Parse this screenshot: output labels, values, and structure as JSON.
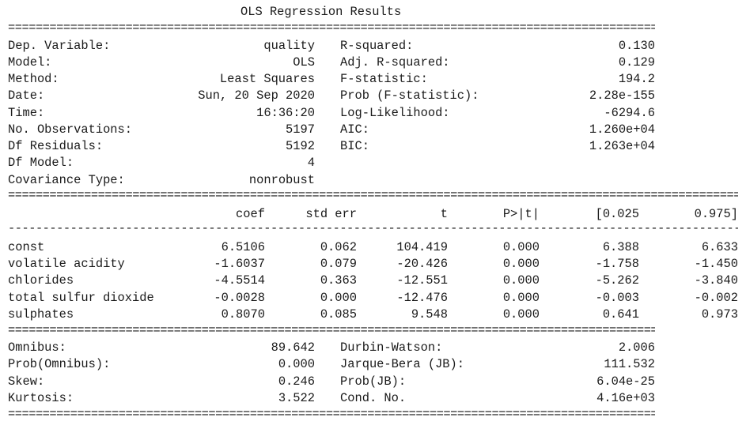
{
  "title": "OLS Regression Results",
  "separators": {
    "double": "==============================================================================================================================================",
    "single": "----------------------------------------------------------------------------------------------------------------------------------------------"
  },
  "summary": {
    "left": [
      {
        "label": "Dep. Variable:",
        "value": "quality"
      },
      {
        "label": "Model:",
        "value": "OLS"
      },
      {
        "label": "Method:",
        "value": "Least Squares"
      },
      {
        "label": "Date:",
        "value": "Sun, 20 Sep 2020"
      },
      {
        "label": "Time:",
        "value": "16:36:20"
      },
      {
        "label": "No. Observations:",
        "value": "5197"
      },
      {
        "label": "Df Residuals:",
        "value": "5192"
      },
      {
        "label": "Df Model:",
        "value": "4"
      },
      {
        "label": "Covariance Type:",
        "value": "nonrobust"
      }
    ],
    "right": [
      {
        "label": "R-squared:",
        "value": "0.130"
      },
      {
        "label": "Adj. R-squared:",
        "value": "0.129"
      },
      {
        "label": "F-statistic:",
        "value": "194.2"
      },
      {
        "label": "Prob (F-statistic):",
        "value": "2.28e-155"
      },
      {
        "label": "Log-Likelihood:",
        "value": "-6294.6"
      },
      {
        "label": "AIC:",
        "value": "1.260e+04"
      },
      {
        "label": "BIC:",
        "value": "1.263e+04"
      }
    ]
  },
  "coef_table": {
    "headers": [
      "coef",
      "std err",
      "t",
      "P>|t|",
      "[0.025",
      "0.975]"
    ],
    "rows": [
      {
        "name": "const",
        "cells": [
          "6.5106",
          "0.062",
          "104.419",
          "0.000",
          "6.388",
          "6.633"
        ]
      },
      {
        "name": "volatile acidity",
        "cells": [
          "-1.6037",
          "0.079",
          "-20.426",
          "0.000",
          "-1.758",
          "-1.450"
        ]
      },
      {
        "name": "chlorides",
        "cells": [
          "-4.5514",
          "0.363",
          "-12.551",
          "0.000",
          "-5.262",
          "-3.840"
        ]
      },
      {
        "name": "total sulfur dioxide",
        "cells": [
          "-0.0028",
          "0.000",
          "-12.476",
          "0.000",
          "-0.003",
          "-0.002"
        ]
      },
      {
        "name": "sulphates",
        "cells": [
          "0.8070",
          "0.085",
          "9.548",
          "0.000",
          "0.641",
          "0.973"
        ]
      }
    ]
  },
  "diagnostics": {
    "left": [
      {
        "label": "Omnibus:",
        "value": "89.642"
      },
      {
        "label": "Prob(Omnibus):",
        "value": "0.000"
      },
      {
        "label": "Skew:",
        "value": "0.246"
      },
      {
        "label": "Kurtosis:",
        "value": "3.522"
      }
    ],
    "right": [
      {
        "label": "Durbin-Watson:",
        "value": "2.006"
      },
      {
        "label": "Jarque-Bera (JB):",
        "value": "111.532"
      },
      {
        "label": "Prob(JB):",
        "value": "6.04e-25"
      },
      {
        "label": "Cond. No.",
        "value": "4.16e+03"
      }
    ]
  }
}
